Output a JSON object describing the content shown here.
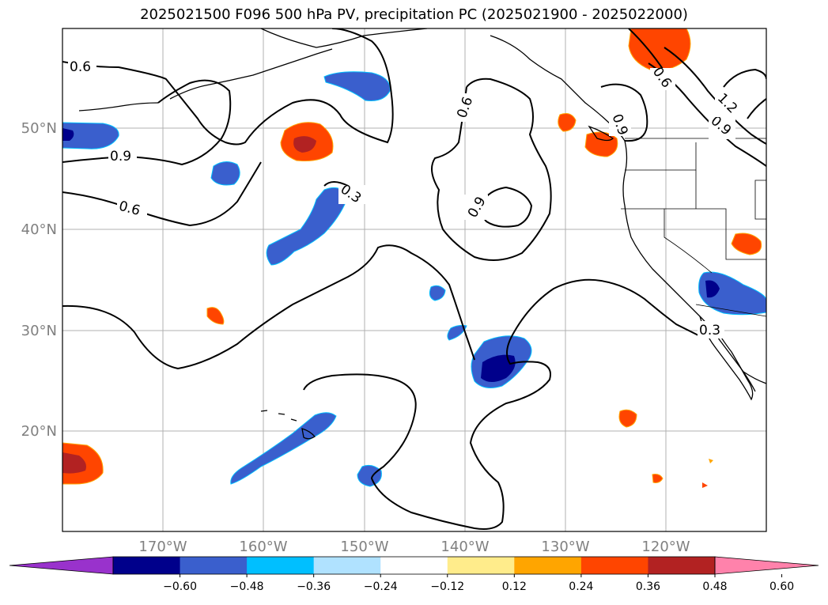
{
  "title": "2025021500 F096 500 hPa PV, precipitation PC (2025021900 - 2025022000)",
  "latitude_labels": [
    "50°N",
    "40°N",
    "30°N",
    "20°N"
  ],
  "longitude_labels": [
    "170°W",
    "160°W",
    "150°W",
    "140°W",
    "130°W",
    "120°W"
  ],
  "contour_labels": [
    "0.6",
    "0.9",
    "0.6",
    "0.3",
    "0.6",
    "0.9",
    "0.6",
    "0.9",
    "1.2",
    "0.9",
    "0.3"
  ],
  "colorbar": {
    "tick_labels": [
      "−0.60",
      "−0.48",
      "−0.36",
      "−0.24",
      "−0.12",
      "0.12",
      "0.24",
      "0.36",
      "0.48",
      "0.60"
    ],
    "colors": [
      "#9932cc",
      "#00008b",
      "#3a5fcd",
      "#00bfff",
      "#b0e2ff",
      "#ffffff",
      "#ffec8b",
      "#ffa500",
      "#ff4500",
      "#b22222",
      "#ff82ab"
    ]
  },
  "colors": {
    "coastline": "#000000",
    "gridlines": "#b0b0b0",
    "contour": "#000000"
  }
}
